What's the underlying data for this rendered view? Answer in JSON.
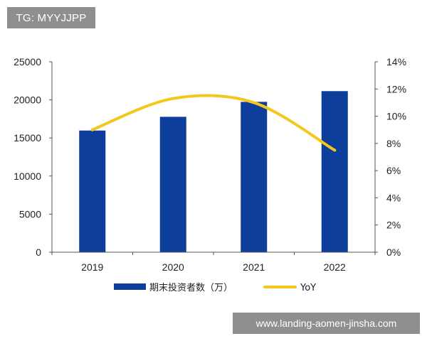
{
  "watermark_top": "TG: MYYJJPP",
  "watermark_bottom": "www.landing-aomen-jinsha.com",
  "chart_data": {
    "type": "bar",
    "categories": [
      "2019",
      "2020",
      "2021",
      "2022"
    ],
    "series": [
      {
        "name": "期末投资者数（万）",
        "type": "bar",
        "axis": "left",
        "color": "#0d3e9b",
        "values": [
          15975,
          17777,
          19740,
          21149
        ]
      },
      {
        "name": "YoY",
        "type": "line",
        "axis": "right",
        "color": "#f2c81d",
        "values": [
          0.09,
          0.113,
          0.11,
          0.075
        ]
      }
    ],
    "y_left": {
      "ylim": [
        0,
        25000
      ],
      "ticks": [
        "0",
        "5000",
        "10000",
        "15000",
        "20000",
        "25000"
      ]
    },
    "y_right": {
      "ylim": [
        0,
        0.14
      ],
      "ticks": [
        "0%",
        "2%",
        "4%",
        "6%",
        "8%",
        "10%",
        "12%",
        "14%"
      ]
    },
    "legend_placement": "bottom",
    "grid": false
  }
}
